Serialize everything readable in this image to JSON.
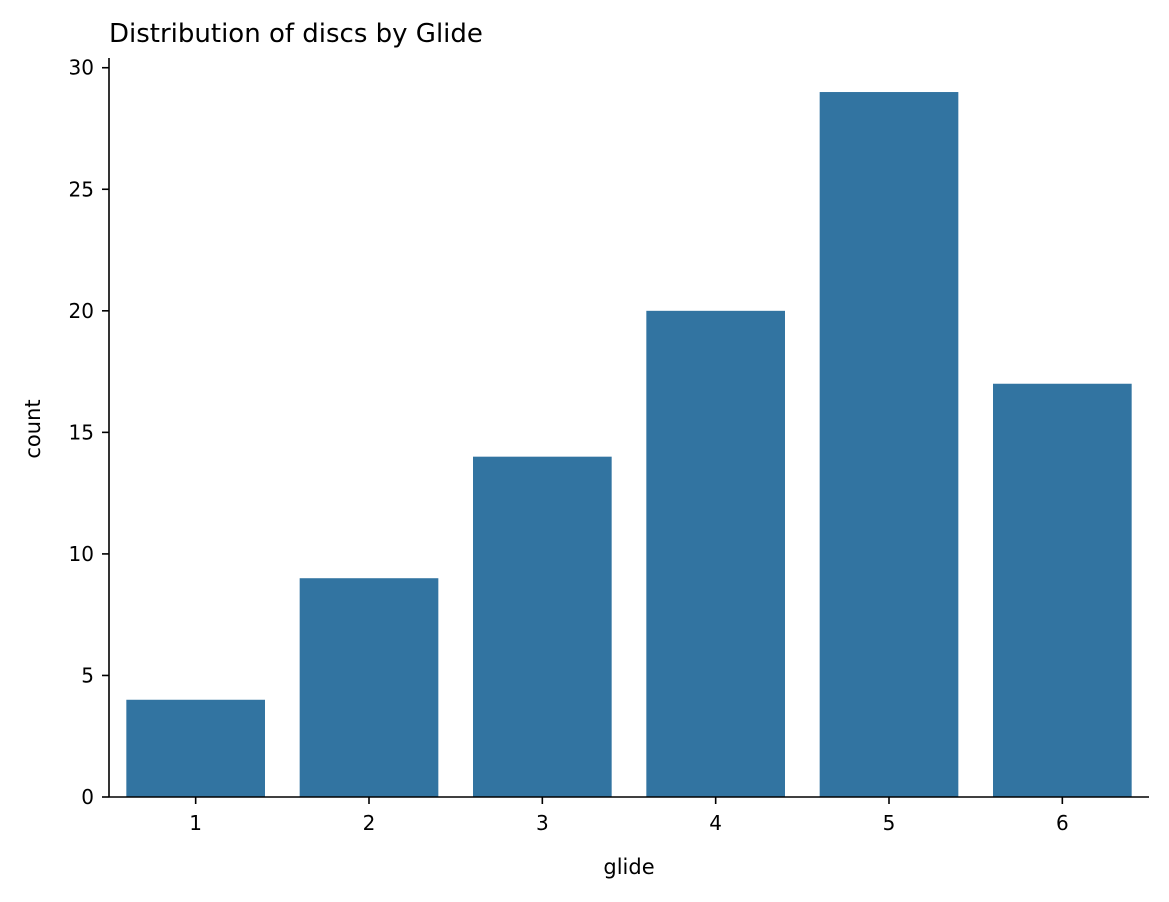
{
  "chart_data": {
    "type": "bar",
    "title": "Distribution of discs by Glide",
    "xlabel": "glide",
    "ylabel": "count",
    "categories": [
      "1",
      "2",
      "3",
      "4",
      "5",
      "6"
    ],
    "values": [
      4,
      9,
      14,
      20,
      29,
      17
    ],
    "ylim": [
      0,
      30.4
    ],
    "yticks": [
      0,
      5,
      10,
      15,
      20,
      25,
      30
    ],
    "bar_color": "#3274a1",
    "grid": false,
    "legend": "none"
  }
}
